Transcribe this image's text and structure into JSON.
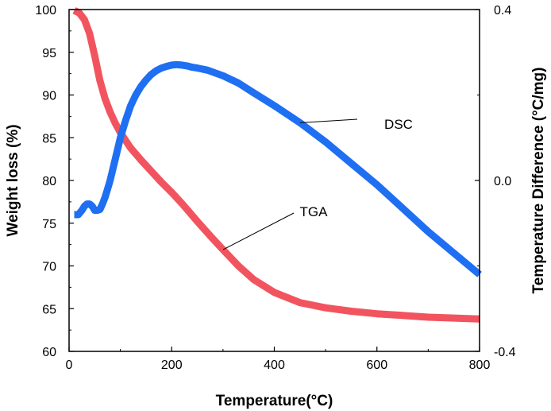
{
  "chart_data": {
    "type": "line",
    "title": "",
    "xlabel": "Temperature(°C)",
    "ylabel": "Weight loss (%)",
    "y2label": "Temperature Difference (°C/mg)",
    "xlim": [
      0,
      800
    ],
    "ylim": [
      60,
      100
    ],
    "y2lim": [
      -0.4,
      0.4
    ],
    "x_ticks": [
      "0",
      "200",
      "400",
      "600",
      "800"
    ],
    "y_ticks": [
      "60",
      "65",
      "70",
      "75",
      "80",
      "85",
      "90",
      "95",
      "100"
    ],
    "y2_ticks": [
      "-0.4",
      "0.0",
      "0.4"
    ],
    "grid": false,
    "series": [
      {
        "name": "TGA",
        "axis": "left",
        "color": "#f2545f",
        "x": [
          10,
          20,
          30,
          40,
          50,
          60,
          70,
          80,
          90,
          100,
          120,
          140,
          160,
          180,
          200,
          220,
          250,
          280,
          300,
          330,
          360,
          400,
          450,
          500,
          550,
          600,
          650,
          700,
          750,
          800
        ],
        "y": [
          99.9,
          99.6,
          98.8,
          97.2,
          94.6,
          91.7,
          89.6,
          88.0,
          86.7,
          85.6,
          83.8,
          82.4,
          81.1,
          79.8,
          78.6,
          77.3,
          75.2,
          73.2,
          71.9,
          70.0,
          68.4,
          66.9,
          65.7,
          65.1,
          64.7,
          64.4,
          64.2,
          64.0,
          63.9,
          63.8
        ]
      },
      {
        "name": "DSC",
        "axis": "right",
        "color": "#1f6ff2",
        "x": [
          10,
          18,
          25,
          30,
          35,
          40,
          45,
          50,
          55,
          60,
          65,
          70,
          75,
          80,
          90,
          100,
          110,
          120,
          130,
          140,
          150,
          160,
          170,
          180,
          190,
          200,
          210,
          220,
          230,
          240,
          250,
          270,
          300,
          330,
          360,
          400,
          450,
          500,
          550,
          600,
          650,
          700,
          750,
          800
        ],
        "y": [
          -0.08,
          -0.08,
          -0.07,
          -0.06,
          -0.055,
          -0.055,
          -0.06,
          -0.07,
          -0.07,
          -0.068,
          -0.055,
          -0.04,
          -0.02,
          0.0,
          0.05,
          0.1,
          0.14,
          0.175,
          0.2,
          0.22,
          0.235,
          0.248,
          0.257,
          0.263,
          0.267,
          0.27,
          0.271,
          0.27,
          0.268,
          0.265,
          0.263,
          0.258,
          0.245,
          0.228,
          0.205,
          0.175,
          0.135,
          0.09,
          0.04,
          -0.01,
          -0.065,
          -0.12,
          -0.17,
          -0.22
        ]
      }
    ],
    "annotations": [
      {
        "text": "TGA",
        "series": "TGA"
      },
      {
        "text": "DSC",
        "series": "DSC"
      }
    ]
  }
}
